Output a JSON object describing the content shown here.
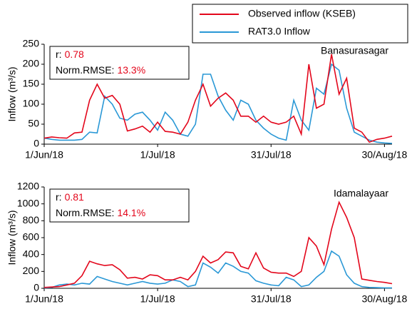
{
  "chart_data": [
    {
      "type": "line",
      "station": "Banasurasagar",
      "ylabel": "Inflow (m³/s)",
      "r_label": "r:",
      "r": 0.78,
      "rmse_label": "Norm.RMSE:",
      "rmse": {
        "value": 13.3,
        "label": "13.3%"
      },
      "x": [
        0,
        2,
        4,
        6,
        8,
        10,
        12,
        14,
        16,
        18,
        20,
        22,
        24,
        26,
        28,
        30,
        32,
        34,
        36,
        38,
        40,
        42,
        44,
        46,
        48,
        50,
        52,
        54,
        56,
        58,
        60,
        62,
        64,
        66,
        68,
        70,
        72,
        74,
        76,
        78,
        80,
        82,
        84,
        86,
        88,
        90,
        92
      ],
      "xlim": [
        0,
        92
      ],
      "xticks": [
        {
          "value": 0,
          "label": "1/Jun/18"
        },
        {
          "value": 30,
          "label": "1/Jul/18"
        },
        {
          "value": 60,
          "label": "31/Jul/18"
        },
        {
          "value": 90,
          "label": "30/Aug/18"
        }
      ],
      "ylim": [
        0,
        250
      ],
      "yticks": [
        0,
        50,
        100,
        150,
        200,
        250
      ],
      "series": [
        {
          "name": "Observed inflow (KSEB)",
          "color": "#e3061b",
          "values": [
            15,
            18,
            16,
            15,
            28,
            30,
            110,
            150,
            115,
            122,
            100,
            33,
            38,
            45,
            30,
            55,
            32,
            30,
            25,
            55,
            110,
            150,
            95,
            115,
            128,
            110,
            70,
            70,
            55,
            70,
            55,
            50,
            55,
            70,
            25,
            200,
            90,
            100,
            225,
            125,
            165,
            40,
            30,
            5,
            12,
            15,
            20
          ]
        },
        {
          "name": "RAT3.0 Inflow",
          "color": "#2a98d6",
          "values": [
            15,
            12,
            10,
            10,
            10,
            12,
            30,
            28,
            120,
            100,
            65,
            60,
            75,
            80,
            60,
            35,
            80,
            60,
            25,
            20,
            50,
            175,
            175,
            120,
            85,
            60,
            110,
            100,
            60,
            40,
            25,
            15,
            10,
            110,
            60,
            35,
            140,
            125,
            200,
            185,
            90,
            30,
            20,
            10,
            5,
            3,
            2
          ]
        }
      ]
    },
    {
      "type": "line",
      "station": "Idamalayaar",
      "ylabel": "Inflow (m³/s)",
      "r_label": "r:",
      "r": 0.81,
      "rmse_label": "Norm.RMSE:",
      "rmse": {
        "value": 14.1,
        "label": "14.1%"
      },
      "x": [
        0,
        2,
        4,
        6,
        8,
        10,
        12,
        14,
        16,
        18,
        20,
        22,
        24,
        26,
        28,
        30,
        32,
        34,
        36,
        38,
        40,
        42,
        44,
        46,
        48,
        50,
        52,
        54,
        56,
        58,
        60,
        62,
        64,
        66,
        68,
        70,
        72,
        74,
        76,
        78,
        80,
        82,
        84,
        86,
        88,
        90,
        92
      ],
      "xlim": [
        0,
        92
      ],
      "xticks": [
        {
          "value": 0,
          "label": "1/Jun/18"
        },
        {
          "value": 30,
          "label": "1/Jul/18"
        },
        {
          "value": 60,
          "label": "31/Jul/18"
        },
        {
          "value": 90,
          "label": "30/Aug/18"
        }
      ],
      "ylim": [
        0,
        1200
      ],
      "yticks": [
        0,
        200,
        400,
        600,
        800,
        1000,
        1200
      ],
      "series": [
        {
          "color": "#e3061b",
          "values": [
            10,
            15,
            20,
            40,
            60,
            150,
            320,
            290,
            270,
            280,
            220,
            120,
            130,
            110,
            160,
            150,
            100,
            100,
            130,
            100,
            200,
            380,
            300,
            340,
            430,
            420,
            260,
            230,
            420,
            240,
            190,
            180,
            180,
            140,
            200,
            600,
            500,
            280,
            700,
            1020,
            840,
            600,
            110,
            95,
            80,
            70,
            55
          ]
        },
        {
          "color": "#2a98d6",
          "values": [
            5,
            10,
            40,
            50,
            40,
            60,
            50,
            140,
            110,
            80,
            60,
            40,
            60,
            80,
            60,
            50,
            60,
            100,
            80,
            20,
            40,
            300,
            250,
            180,
            300,
            260,
            200,
            180,
            90,
            60,
            40,
            30,
            130,
            100,
            20,
            40,
            130,
            200,
            440,
            380,
            160,
            60,
            20,
            10,
            8,
            5,
            5
          ]
        }
      ]
    }
  ]
}
